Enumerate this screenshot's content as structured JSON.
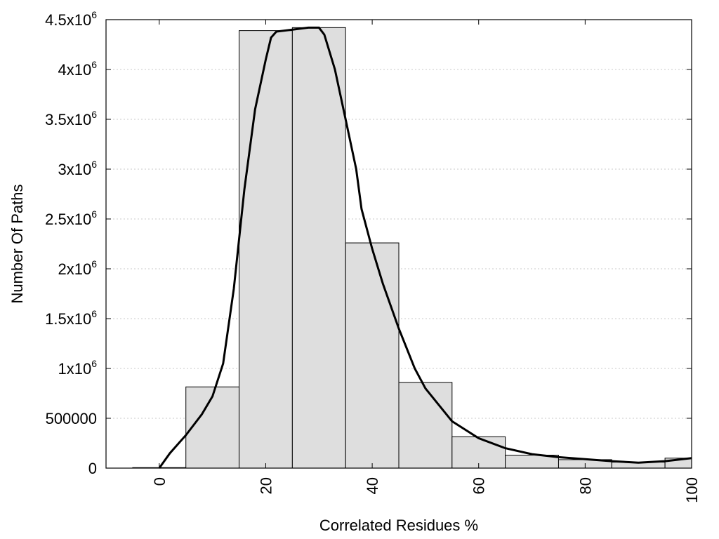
{
  "chart_data": {
    "type": "bar",
    "xlabel": "Correlated Residues %",
    "ylabel": "Number Of Paths",
    "xlim": [
      -10,
      100
    ],
    "ylim": [
      0,
      4500000
    ],
    "grid": "horizontal dotted",
    "bar_color": "#dedede",
    "bar_edge_color": "#000000",
    "line_color": "#000000",
    "x_ticks": [
      {
        "value": 0,
        "label": "0"
      },
      {
        "value": 20,
        "label": "20"
      },
      {
        "value": 40,
        "label": "40"
      },
      {
        "value": 60,
        "label": "60"
      },
      {
        "value": 80,
        "label": "80"
      },
      {
        "value": 100,
        "label": "100"
      }
    ],
    "y_ticks": [
      {
        "value": 0,
        "base": "0",
        "sup": ""
      },
      {
        "value": 500000,
        "base": "500000",
        "sup": ""
      },
      {
        "value": 1000000,
        "base": "1x10",
        "sup": "6"
      },
      {
        "value": 1500000,
        "base": "1.5x10",
        "sup": "6"
      },
      {
        "value": 2000000,
        "base": "2x10",
        "sup": "6"
      },
      {
        "value": 2500000,
        "base": "2.5x10",
        "sup": "6"
      },
      {
        "value": 3000000,
        "base": "3x10",
        "sup": "6"
      },
      {
        "value": 3500000,
        "base": "3.5x10",
        "sup": "6"
      },
      {
        "value": 4000000,
        "base": "4x10",
        "sup": "6"
      },
      {
        "value": 4500000,
        "base": "4.5x10",
        "sup": "6"
      }
    ],
    "bins": [
      {
        "x0": -5,
        "x1": 5,
        "value": 5000
      },
      {
        "x0": 5,
        "x1": 15,
        "value": 815000
      },
      {
        "x0": 15,
        "x1": 25,
        "value": 4390000
      },
      {
        "x0": 25,
        "x1": 35,
        "value": 4420000
      },
      {
        "x0": 35,
        "x1": 45,
        "value": 2260000
      },
      {
        "x0": 45,
        "x1": 55,
        "value": 860000
      },
      {
        "x0": 55,
        "x1": 65,
        "value": 315000
      },
      {
        "x0": 65,
        "x1": 75,
        "value": 130000
      },
      {
        "x0": 75,
        "x1": 85,
        "value": 85000
      },
      {
        "x0": 85,
        "x1": 95,
        "value": 60000
      },
      {
        "x0": 95,
        "x1": 105,
        "value": 100000
      }
    ],
    "curve": [
      {
        "x": 0,
        "y": 0
      },
      {
        "x": 2,
        "y": 150000
      },
      {
        "x": 5,
        "y": 330000
      },
      {
        "x": 8,
        "y": 540000
      },
      {
        "x": 10,
        "y": 720000
      },
      {
        "x": 12,
        "y": 1050000
      },
      {
        "x": 14,
        "y": 1800000
      },
      {
        "x": 16,
        "y": 2800000
      },
      {
        "x": 18,
        "y": 3600000
      },
      {
        "x": 20,
        "y": 4100000
      },
      {
        "x": 21,
        "y": 4320000
      },
      {
        "x": 22,
        "y": 4380000
      },
      {
        "x": 25,
        "y": 4400000
      },
      {
        "x": 28,
        "y": 4420000
      },
      {
        "x": 30,
        "y": 4420000
      },
      {
        "x": 31,
        "y": 4350000
      },
      {
        "x": 33,
        "y": 4000000
      },
      {
        "x": 35,
        "y": 3500000
      },
      {
        "x": 37,
        "y": 3000000
      },
      {
        "x": 38,
        "y": 2600000
      },
      {
        "x": 40,
        "y": 2200000
      },
      {
        "x": 42,
        "y": 1850000
      },
      {
        "x": 45,
        "y": 1400000
      },
      {
        "x": 48,
        "y": 1000000
      },
      {
        "x": 50,
        "y": 800000
      },
      {
        "x": 55,
        "y": 470000
      },
      {
        "x": 60,
        "y": 300000
      },
      {
        "x": 65,
        "y": 200000
      },
      {
        "x": 70,
        "y": 140000
      },
      {
        "x": 75,
        "y": 110000
      },
      {
        "x": 80,
        "y": 90000
      },
      {
        "x": 85,
        "y": 70000
      },
      {
        "x": 90,
        "y": 55000
      },
      {
        "x": 95,
        "y": 70000
      },
      {
        "x": 100,
        "y": 100000
      }
    ]
  }
}
